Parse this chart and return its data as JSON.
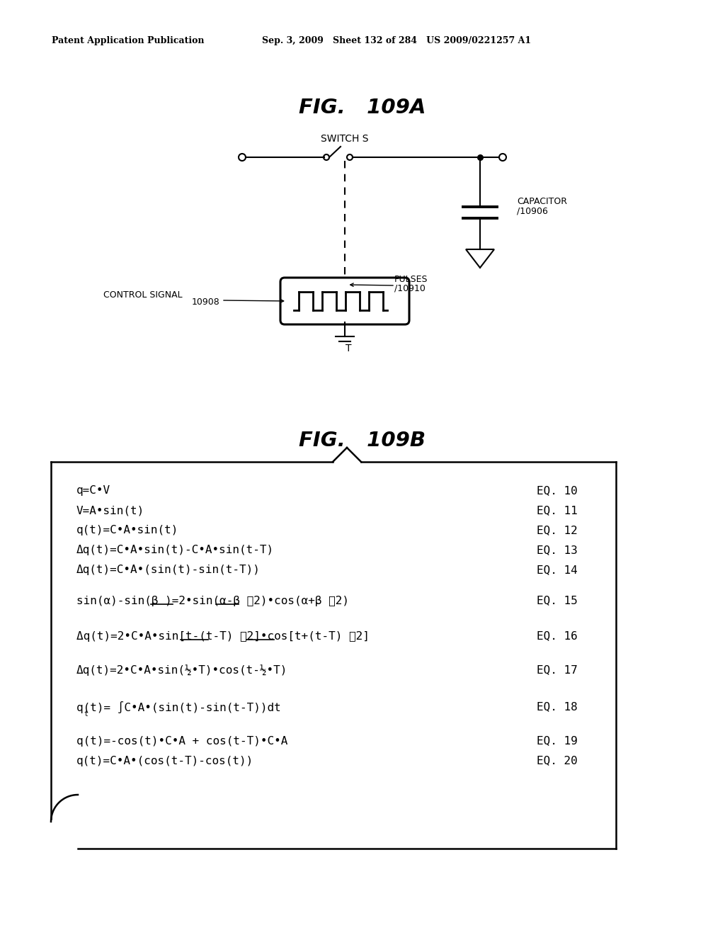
{
  "header_left": "Patent Application Publication",
  "header_mid": "Sep. 3, 2009   Sheet 132 of 284   US 2009/0221257 A1",
  "fig109A_title": "FIG.   109A",
  "fig109B_title": "FIG.   109B",
  "switch_label": "SWITCH S",
  "capacitor_label": "CAPACITOR",
  "capacitor_num": "10906",
  "pulses_label": "PULSES",
  "pulses_num": "10910",
  "control_signal_label": "CONTROL SIGNAL",
  "control_signal_num": "10908",
  "t_label": "T",
  "eq_texts": [
    "q=C•V",
    "V=A•sin(t)",
    "q(t)=C•A•sin(t)",
    "Δq(t)=C•A•sin(t)-C•A•sin(t-T)",
    "Δq(t)=C•A•(sin(t)-sin(t-T))",
    "sin(α)-sin(β )=2•sin(α-β ⁄2)•cos(α+β ⁄2)",
    "Δq(t)=2•C•A•sin[t-(t-T) ⁄2]•cos[t+(t-T) ⁄2]",
    "Δq(t)=2•C•A•sin(½•T)•cos(t-½•T)",
    "q(t)= ∫C•A•(sin(t)-sin(t-T))dt",
    "q(t)=-cos(t)•C•A + cos(t-T)•C•A",
    "q(t)=C•A•(cos(t-T)-cos(t))"
  ],
  "eq_labels": [
    "EQ. 10",
    "EQ. 11",
    "EQ. 12",
    "EQ. 13",
    "EQ. 14",
    "EQ. 15",
    "EQ. 16",
    "EQ. 17",
    "EQ. 18",
    "EQ. 19",
    "EQ. 20"
  ],
  "bg_color": "#ffffff",
  "text_color": "#000000",
  "line_color": "#000000"
}
